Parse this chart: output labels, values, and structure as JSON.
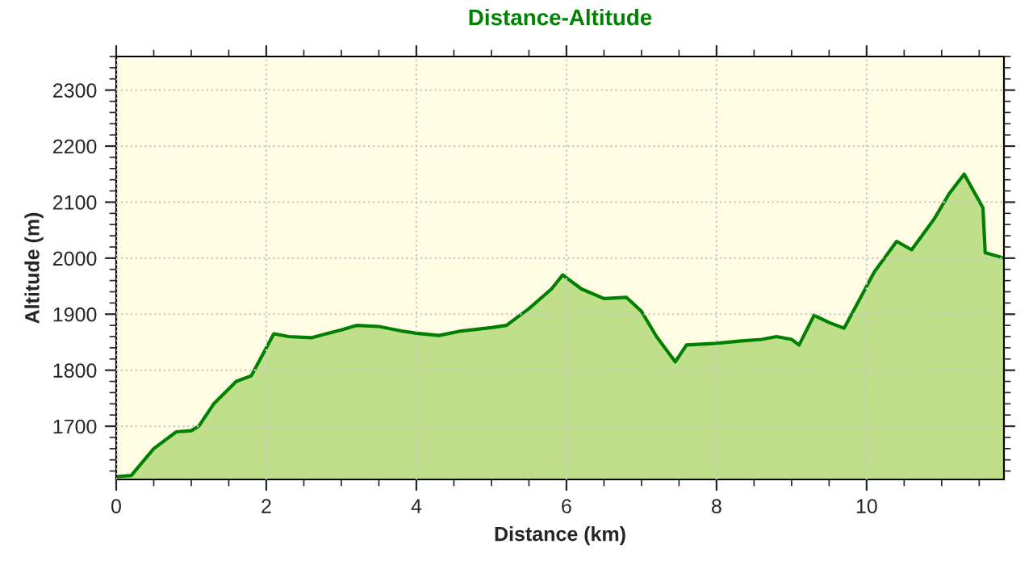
{
  "chart_data": {
    "type": "area",
    "title": "Distance-Altitude",
    "xlabel": "Distance (km)",
    "ylabel": "Altitude (m)",
    "x": [
      0,
      0.2,
      0.5,
      0.8,
      1.0,
      1.1,
      1.3,
      1.6,
      1.8,
      2.0,
      2.1,
      2.3,
      2.6,
      2.8,
      3.0,
      3.2,
      3.5,
      3.8,
      4.0,
      4.3,
      4.6,
      5.0,
      5.2,
      5.5,
      5.8,
      5.95,
      6.2,
      6.5,
      6.8,
      7.0,
      7.2,
      7.45,
      7.6,
      8.0,
      8.3,
      8.6,
      8.8,
      9.0,
      9.1,
      9.3,
      9.5,
      9.7,
      9.9,
      10.1,
      10.4,
      10.6,
      10.9,
      11.1,
      11.3,
      11.55,
      11.58,
      11.83
    ],
    "series": [
      {
        "color": "#008000",
        "values": [
          1610,
          1612,
          1660,
          1690,
          1692,
          1700,
          1740,
          1780,
          1790,
          1840,
          1865,
          1860,
          1858,
          1865,
          1872,
          1880,
          1878,
          1870,
          1866,
          1862,
          1870,
          1876,
          1880,
          1910,
          1945,
          1970,
          1945,
          1928,
          1930,
          1905,
          1860,
          1815,
          1845,
          1848,
          1852,
          1855,
          1860,
          1855,
          1845,
          1898,
          1885,
          1875,
          1925,
          1975,
          2030,
          2015,
          2070,
          2115,
          2150,
          2090,
          2010,
          2000
        ]
      }
    ],
    "xlim": [
      0,
      11.83
    ],
    "ylim": [
      1605,
      2360
    ],
    "xticks": [
      0,
      2,
      4,
      6,
      8,
      10
    ],
    "yticks": [
      1700,
      1800,
      1900,
      2000,
      2100,
      2200,
      2300
    ],
    "grid": true,
    "legend": false
  }
}
